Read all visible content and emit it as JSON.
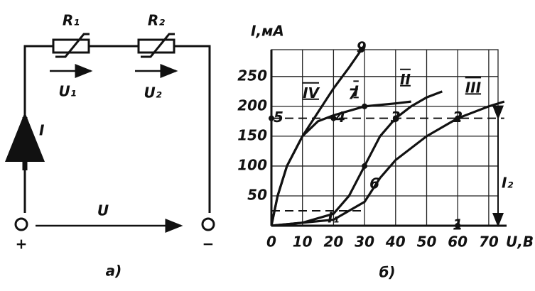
{
  "circuit": {
    "r1": "R₁",
    "r2": "R₂",
    "u1": "U₁",
    "u2": "U₂",
    "current": "I",
    "voltage": "U",
    "plus": "+",
    "minus": "−",
    "caption": "а)"
  },
  "chart_data": {
    "type": "line",
    "caption": "б)",
    "ylabel": "I,мA",
    "xlabel": "U,B",
    "xlim": [
      0,
      73
    ],
    "ylim": [
      0,
      295
    ],
    "xticks": [
      0,
      10,
      20,
      30,
      40,
      50,
      60,
      70
    ],
    "yticks": [
      50,
      100,
      150,
      200,
      250
    ],
    "series": [
      {
        "name": "IV",
        "x": [
          0,
          2,
          5,
          10,
          15,
          20,
          25,
          29
        ],
        "values": [
          0,
          50,
          100,
          150,
          190,
          230,
          265,
          295
        ]
      },
      {
        "name": "I",
        "x": [
          0,
          2,
          5,
          10,
          15,
          20,
          30,
          40,
          45
        ],
        "values": [
          0,
          50,
          100,
          150,
          175,
          185,
          200,
          205,
          208
        ]
      },
      {
        "name": "II",
        "x": [
          0,
          10,
          20,
          25,
          30,
          35,
          40,
          45,
          50,
          55
        ],
        "values": [
          0,
          5,
          20,
          50,
          100,
          150,
          180,
          200,
          215,
          225
        ]
      },
      {
        "name": "III",
        "x": [
          0,
          20,
          30,
          35,
          40,
          50,
          60,
          70,
          75
        ],
        "values": [
          0,
          10,
          40,
          80,
          110,
          150,
          180,
          200,
          208
        ]
      }
    ],
    "reference_lines": [
      {
        "y": 180,
        "x": [
          0,
          75
        ]
      },
      {
        "y": 25,
        "x": [
          0,
          30
        ]
      }
    ],
    "points": [
      {
        "label": "1",
        "x": 60,
        "y": 0
      },
      {
        "label": "2",
        "x": 60,
        "y": 180
      },
      {
        "label": "3",
        "x": 40,
        "y": 180
      },
      {
        "label": "4",
        "x": 20,
        "y": 180
      },
      {
        "label": "5",
        "x": 0,
        "y": 180
      },
      {
        "label": "6",
        "x": 30,
        "y": 100
      },
      {
        "label": "7",
        "x": 30,
        "y": 200
      },
      {
        "label": "9",
        "x": 29,
        "y": 295
      }
    ],
    "annotations": [
      {
        "text": "I₁",
        "x": 20,
        "y": 12
      },
      {
        "text": "I₂",
        "x": 76,
        "y": 70
      }
    ],
    "arrow": {
      "x": 73,
      "from": 180,
      "to": 0
    }
  }
}
